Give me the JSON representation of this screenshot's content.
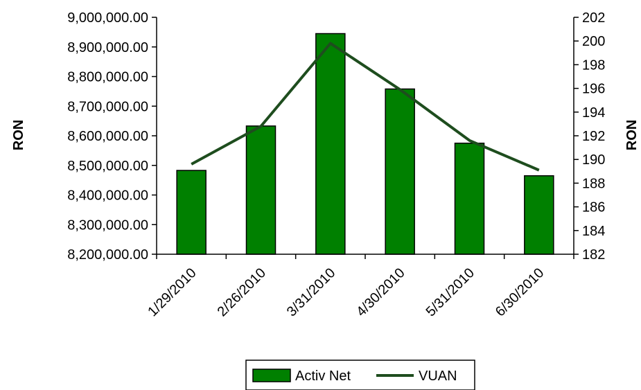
{
  "chart_data": {
    "type": "bar",
    "categories": [
      "1/29/2010",
      "2/26/2010",
      "3/31/2010",
      "4/30/2010",
      "5/31/2010",
      "6/30/2010"
    ],
    "series": [
      {
        "name": "Activ Net",
        "kind": "bar",
        "axis": "left",
        "color": "#008000",
        "values": [
          8483000,
          8633000,
          8945000,
          8758000,
          8575000,
          8465000
        ]
      },
      {
        "name": "VUAN",
        "kind": "line",
        "axis": "right",
        "color": "#1e4d1e",
        "values": [
          189.6,
          192.8,
          199.8,
          195.9,
          191.6,
          189.1
        ]
      }
    ],
    "ylabel": "RON",
    "y2label": "RON",
    "ylim": [
      8200000,
      9000000
    ],
    "y2lim": [
      182,
      202
    ],
    "yticks": [
      "8,200,000.00",
      "8,300,000.00",
      "8,400,000.00",
      "8,500,000.00",
      "8,600,000.00",
      "8,700,000.00",
      "8,800,000.00",
      "8,900,000.00",
      "9,000,000.00"
    ],
    "y2ticks": [
      "182",
      "184",
      "186",
      "188",
      "190",
      "192",
      "194",
      "196",
      "198",
      "200",
      "202"
    ],
    "grid": false,
    "legend": "bottom"
  }
}
